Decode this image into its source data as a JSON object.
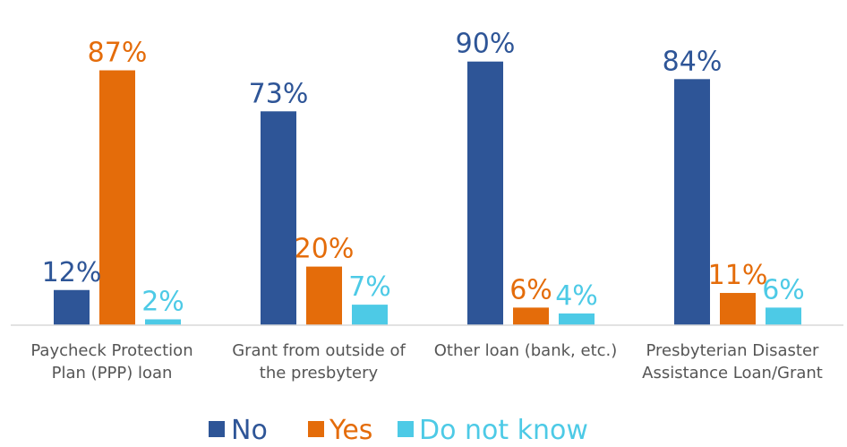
{
  "chart_data": {
    "type": "bar",
    "categories": [
      [
        "Paycheck Protection",
        "Plan (PPP) loan"
      ],
      [
        "Grant from outside of",
        "the presbytery"
      ],
      [
        "Other loan (bank, etc.)"
      ],
      [
        "Presbyterian Disaster",
        "Assistance Loan/Grant"
      ]
    ],
    "series": [
      {
        "name": "No",
        "color": "#2E5597",
        "values": [
          12,
          73,
          90,
          84
        ],
        "labels": [
          "12%",
          "73%",
          "90%",
          "84%"
        ]
      },
      {
        "name": "Yes",
        "color": "#E46C0A",
        "values": [
          87,
          20,
          6,
          11
        ],
        "labels": [
          "87%",
          "20%",
          "6%",
          "11%"
        ]
      },
      {
        "name": "Do not know",
        "color": "#4DCAE6",
        "values": [
          2,
          7,
          4,
          6
        ],
        "labels": [
          "2%",
          "7%",
          "4%",
          "6%"
        ]
      }
    ],
    "ylim": [
      0,
      100
    ],
    "grid": false,
    "legend_position": "bottom"
  }
}
